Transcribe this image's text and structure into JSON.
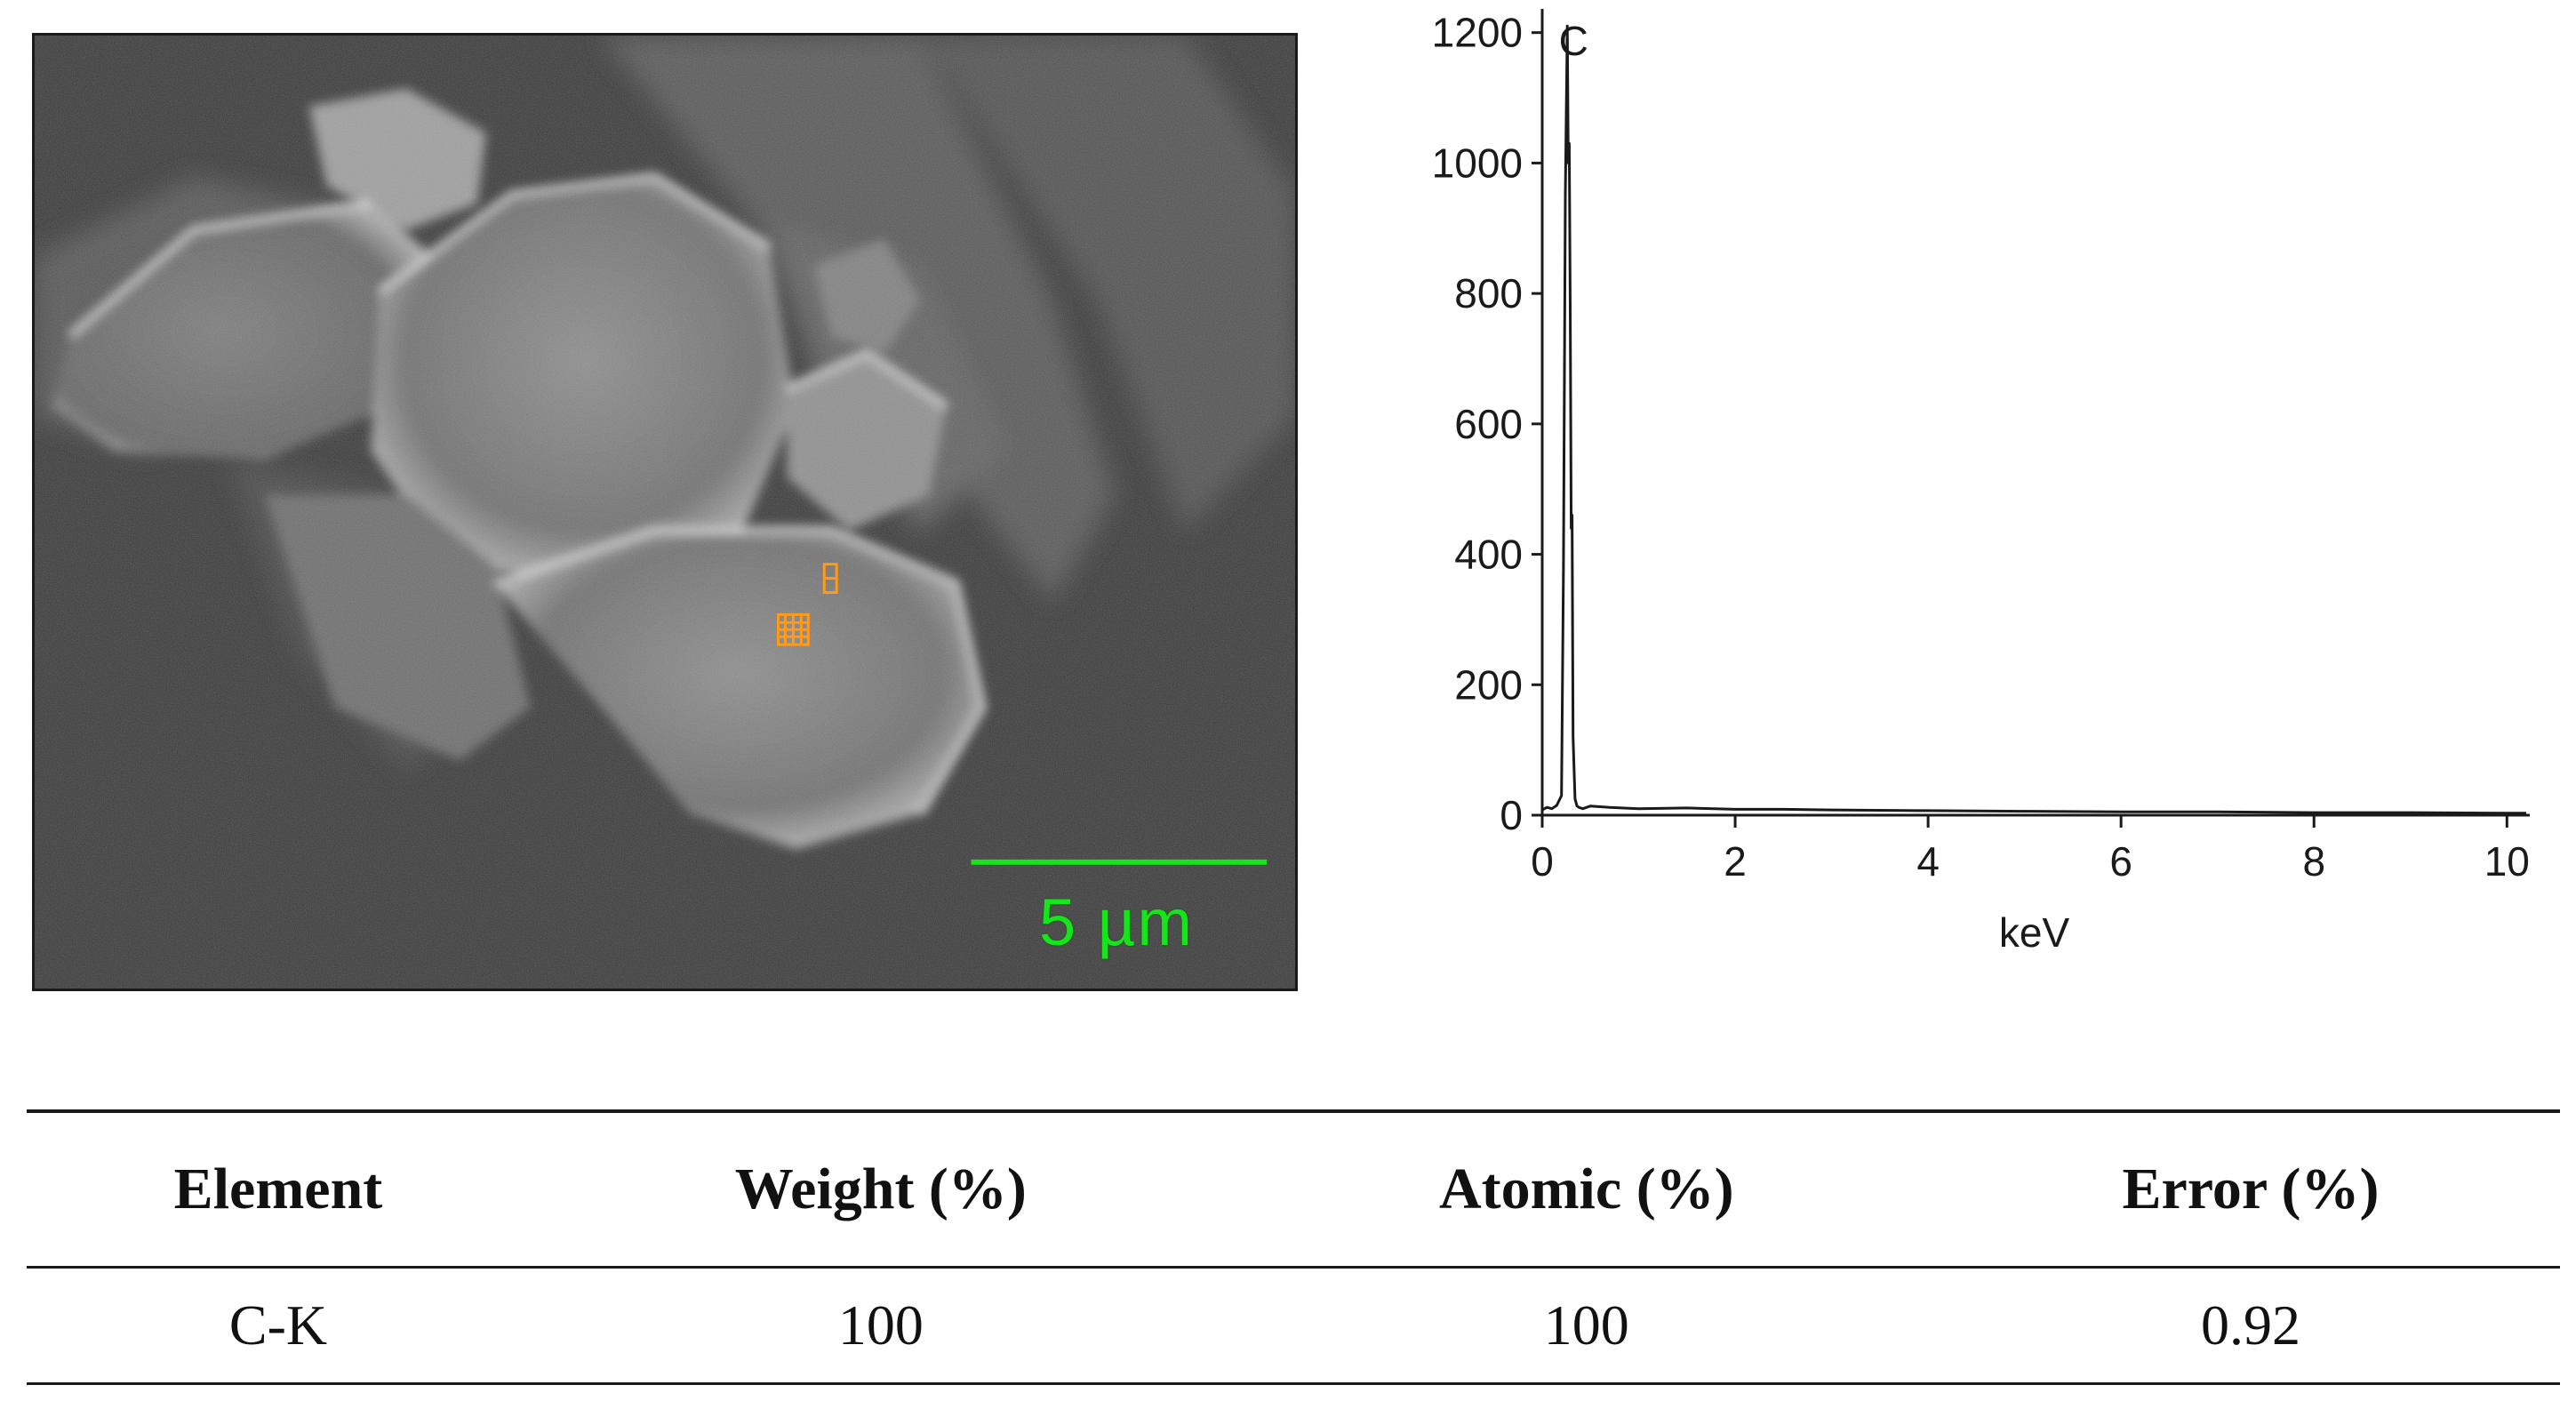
{
  "sem_image": {
    "scale_bar_label": "5 µm",
    "scale_bar_color": "#17e51b",
    "marker_color": "#ff9a1a"
  },
  "chart_data": {
    "type": "line",
    "xlabel": "keV",
    "ylabel": "",
    "xlim": [
      0,
      10.2
    ],
    "ylim": [
      0,
      1250
    ],
    "xticks": [
      0,
      2,
      4,
      6,
      8,
      10
    ],
    "yticks": [
      0,
      200,
      400,
      600,
      800,
      1000,
      1200
    ],
    "annotations": [
      {
        "text": "C",
        "x": 0.27,
        "y": 1210
      }
    ],
    "series": [
      {
        "x": [
          0,
          0.05,
          0.1,
          0.15,
          0.2,
          0.22,
          0.24,
          0.26,
          0.27,
          0.28,
          0.29,
          0.3,
          0.31,
          0.32,
          0.34,
          0.36,
          0.38,
          0.42,
          0.5,
          0.7,
          1.0,
          1.5,
          2.0,
          2.5,
          3.0,
          4.0,
          5.0,
          6.0,
          7.0,
          8.0,
          9.0,
          10.0,
          10.2
        ],
        "y": [
          8,
          12,
          10,
          15,
          30,
          380,
          950,
          1210,
          1000,
          1030,
          780,
          440,
          460,
          120,
          25,
          14,
          12,
          10,
          14,
          12,
          10,
          11,
          9,
          9,
          8,
          7,
          6,
          5,
          5,
          4,
          4,
          3,
          3
        ]
      }
    ]
  },
  "table": {
    "headers": [
      "Element",
      "Weight (%)",
      "Atomic (%)",
      "Error (%)"
    ],
    "rows": [
      [
        "C-K",
        "100",
        "100",
        "0.92"
      ]
    ]
  }
}
